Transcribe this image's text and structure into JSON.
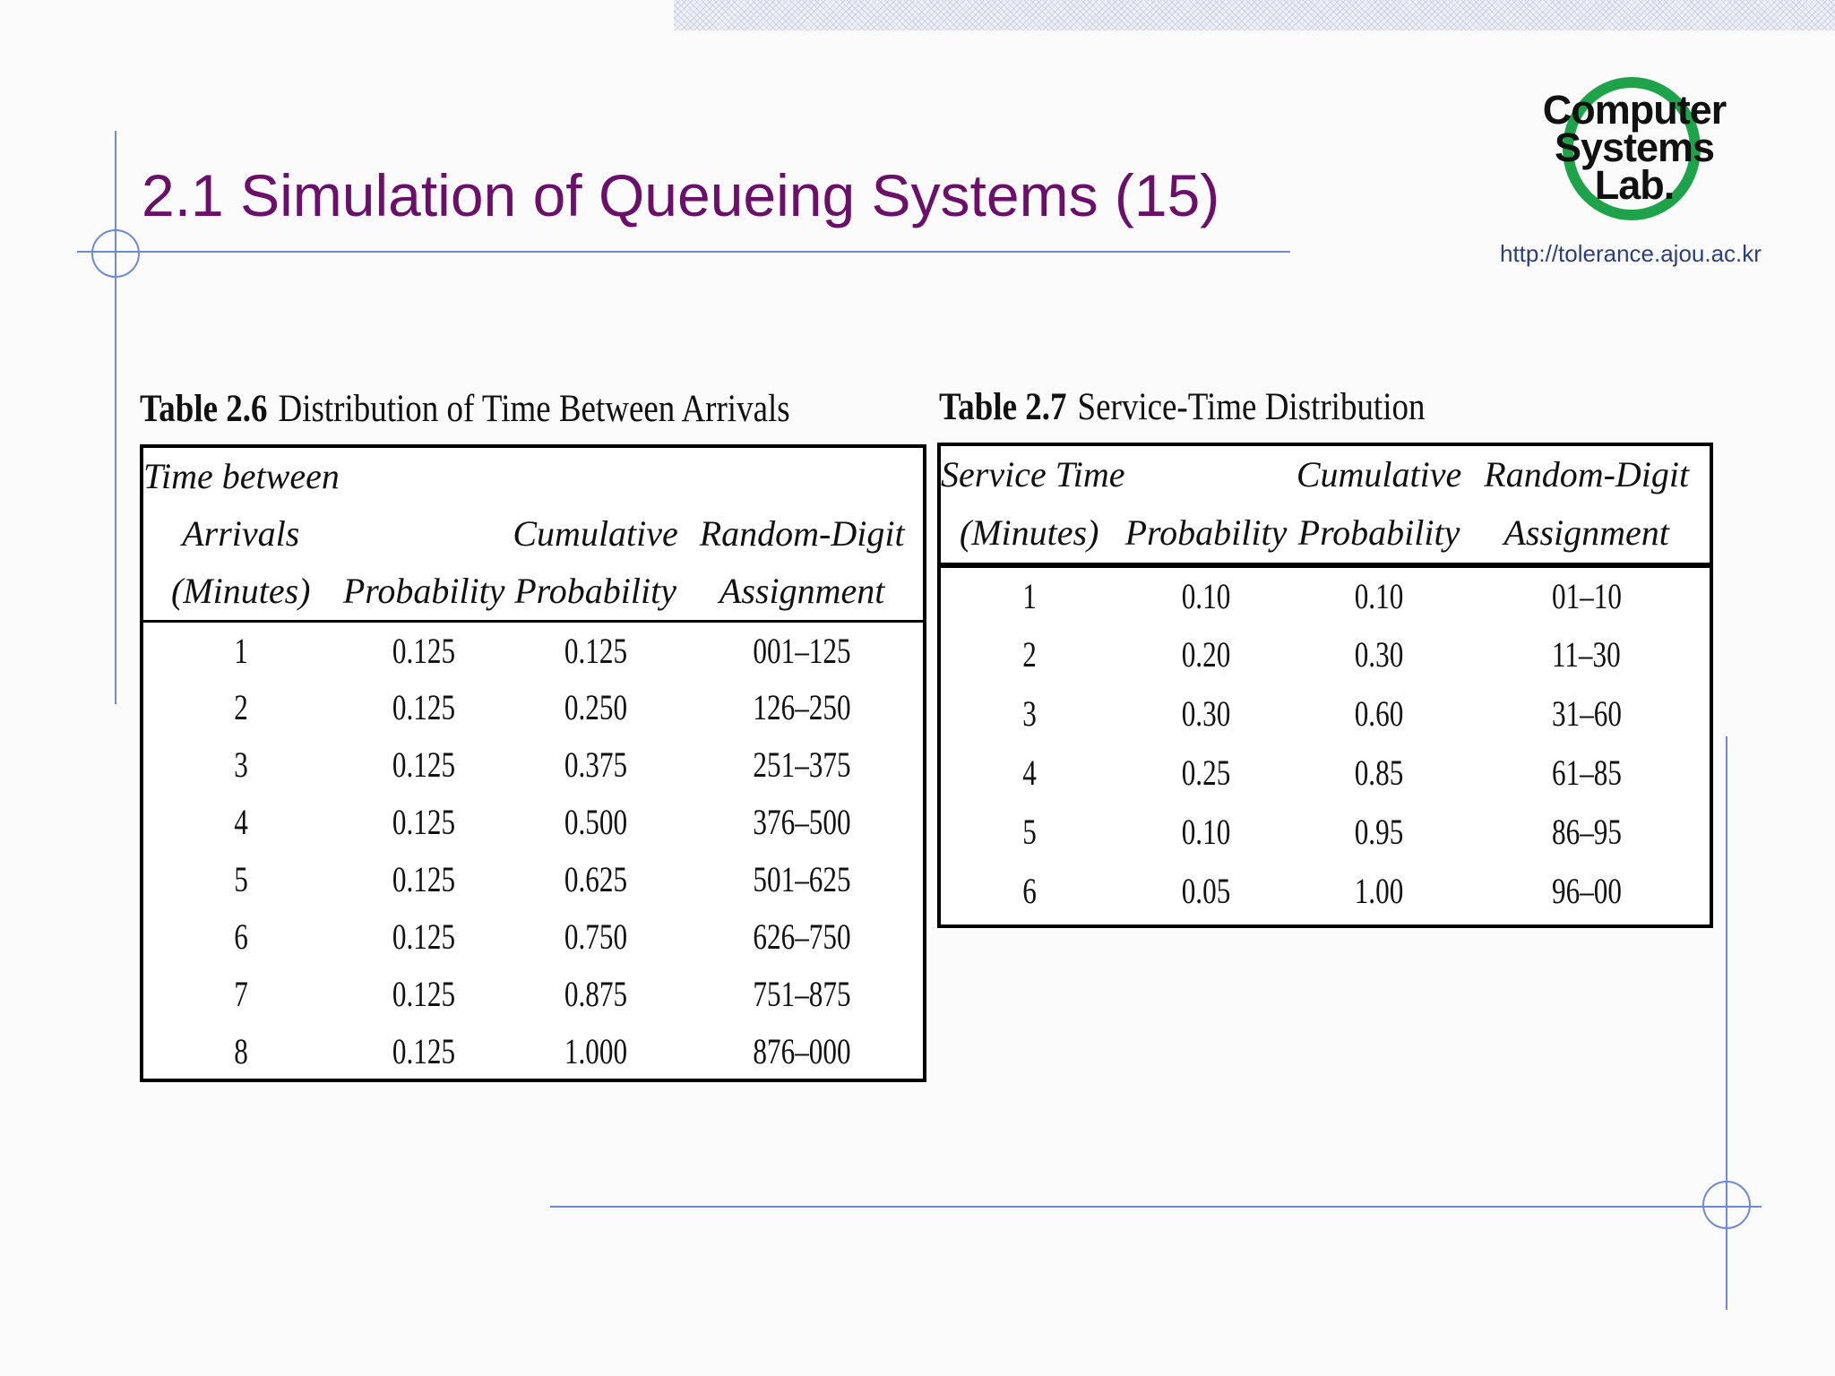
{
  "slide": {
    "title": "2.1 Simulation of Queueing Systems (15)",
    "logo": [
      "Computer",
      "Systems",
      "Lab."
    ],
    "url": "http://tolerance.ajou.ac.kr"
  },
  "table26": {
    "label": "Table 2.6",
    "title": "Distribution of Time Between Arrivals",
    "headers": [
      [
        "Time between",
        "",
        "",
        ""
      ],
      [
        "Arrivals",
        "",
        "Cumulative",
        "Random-Digit"
      ],
      [
        "(Minutes)",
        "Probability",
        "Probability",
        "Assignment"
      ]
    ],
    "rows": [
      [
        "1",
        "0.125",
        "0.125",
        "001–125"
      ],
      [
        "2",
        "0.125",
        "0.250",
        "126–250"
      ],
      [
        "3",
        "0.125",
        "0.375",
        "251–375"
      ],
      [
        "4",
        "0.125",
        "0.500",
        "376–500"
      ],
      [
        "5",
        "0.125",
        "0.625",
        "501–625"
      ],
      [
        "6",
        "0.125",
        "0.750",
        "626–750"
      ],
      [
        "7",
        "0.125",
        "0.875",
        "751–875"
      ],
      [
        "8",
        "0.125",
        "1.000",
        "876–000"
      ]
    ]
  },
  "table27": {
    "label": "Table 2.7",
    "title": "Service-Time Distribution",
    "headers": [
      [
        "Service Time",
        "",
        "Cumulative",
        "Random-Digit"
      ],
      [
        "(Minutes)",
        "Probability",
        "Probability",
        "Assignment"
      ]
    ],
    "rows": [
      [
        "1",
        "0.10",
        "0.10",
        "01–10"
      ],
      [
        "2",
        "0.20",
        "0.30",
        "11–30"
      ],
      [
        "3",
        "0.30",
        "0.60",
        "31–60"
      ],
      [
        "4",
        "0.25",
        "0.85",
        "61–85"
      ],
      [
        "5",
        "0.10",
        "0.95",
        "86–95"
      ],
      [
        "6",
        "0.05",
        "1.00",
        "96–00"
      ]
    ]
  },
  "colors": {
    "title": "#6b0f6b",
    "guide_lines": "#6d8ad8",
    "logo_ring": "#1fa34a",
    "url": "#2d3f7a"
  }
}
